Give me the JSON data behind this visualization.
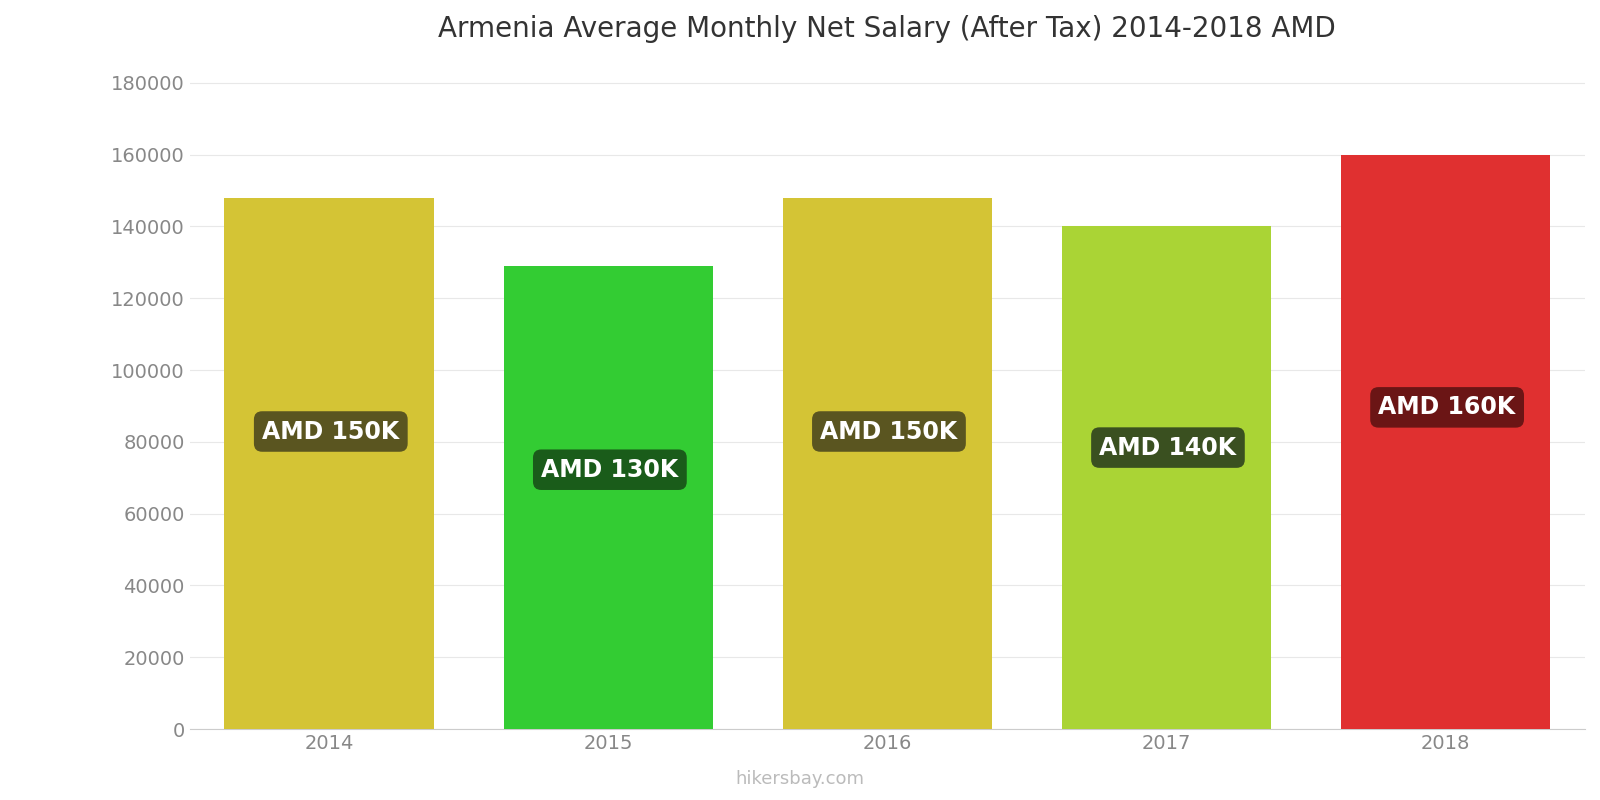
{
  "title": "Armenia Average Monthly Net Salary (After Tax) 2014-2018 AMD",
  "years": [
    2014,
    2015,
    2016,
    2017,
    2018
  ],
  "values": [
    148000,
    129000,
    148000,
    140000,
    160000
  ],
  "labels": [
    "AMD 150K",
    "AMD 130K",
    "AMD 150K",
    "AMD 140K",
    "AMD 160K"
  ],
  "bar_colors": [
    "#d4c435",
    "#33cc33",
    "#d4c435",
    "#aad435",
    "#e03030"
  ],
  "label_bg_colors": [
    "#5a5520",
    "#1a5c1a",
    "#5a5520",
    "#3a5020",
    "#6b1515"
  ],
  "ylabel_ticks": [
    0,
    20000,
    40000,
    60000,
    80000,
    100000,
    120000,
    140000,
    160000,
    180000
  ],
  "ylim": [
    0,
    185000
  ],
  "background_color": "#ffffff",
  "watermark": "hikersbay.com",
  "title_fontsize": 20,
  "tick_fontsize": 14,
  "label_fontsize": 17
}
